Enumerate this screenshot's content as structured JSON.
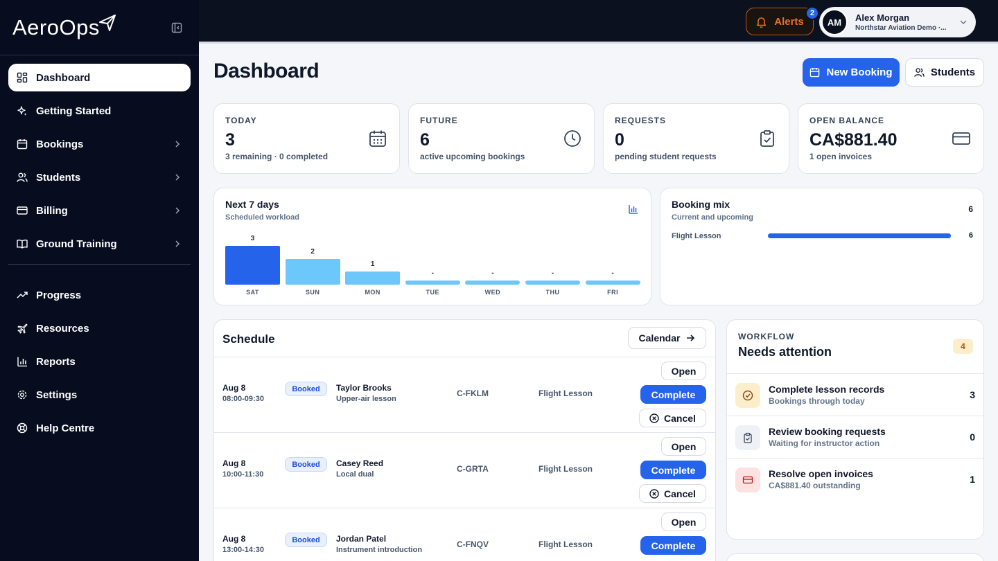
{
  "brand": {
    "name": "AeroOps"
  },
  "sidebar": {
    "items": [
      {
        "label": "Dashboard"
      },
      {
        "label": "Getting Started"
      },
      {
        "label": "Bookings"
      },
      {
        "label": "Students"
      },
      {
        "label": "Billing"
      },
      {
        "label": "Ground Training"
      },
      {
        "label": "Progress"
      },
      {
        "label": "Resources"
      },
      {
        "label": "Reports"
      },
      {
        "label": "Settings"
      },
      {
        "label": "Help Centre"
      }
    ]
  },
  "topbar": {
    "alerts_label": "Alerts",
    "alerts_count": "2",
    "user": {
      "initials": "AM",
      "name": "Alex Morgan",
      "org": "Northstar Aviation Demo ·..."
    }
  },
  "page": {
    "title": "Dashboard",
    "new_booking_label": "New Booking",
    "students_label": "Students"
  },
  "stats": [
    {
      "label": "TODAY",
      "value": "3",
      "sub": "3 remaining · 0 completed"
    },
    {
      "label": "FUTURE",
      "value": "6",
      "sub": "active upcoming bookings"
    },
    {
      "label": "REQUESTS",
      "value": "0",
      "sub": "pending student requests"
    },
    {
      "label": "OPEN BALANCE",
      "value": "CA$881.40",
      "sub": "1 open invoices"
    }
  ],
  "workload": {
    "title": "Next 7 days",
    "subtitle": "Scheduled workload"
  },
  "chart_data": {
    "type": "bar",
    "categories": [
      "SAT",
      "SUN",
      "MON",
      "TUE",
      "WED",
      "THU",
      "FRI"
    ],
    "values": [
      3,
      2,
      1,
      0,
      0,
      0,
      0
    ],
    "value_labels": [
      "3",
      "2",
      "1",
      "-",
      "-",
      "-",
      "-"
    ],
    "colors": [
      "#2563eb",
      "#6cc7fb",
      "#6cc7fb",
      "#6cc7fb",
      "#6cc7fb",
      "#6cc7fb",
      "#6cc7fb"
    ]
  },
  "booking_mix": {
    "title": "Booking mix",
    "subtitle": "Current and upcoming",
    "total": "6",
    "items": [
      {
        "label": "Flight Lesson",
        "value": "6",
        "fraction": 1.0
      }
    ]
  },
  "schedule": {
    "title": "Schedule",
    "calendar_label": "Calendar",
    "open_label": "Open",
    "complete_label": "Complete",
    "cancel_label": "Cancel",
    "rows": [
      {
        "date": "Aug 8",
        "time": "08:00-09:30",
        "status": "Booked",
        "student": "Taylor Brooks",
        "note": "Upper-air lesson",
        "aircraft": "C-FKLM",
        "type": "Flight Lesson"
      },
      {
        "date": "Aug 8",
        "time": "10:00-11:30",
        "status": "Booked",
        "student": "Casey Reed",
        "note": "Local dual",
        "aircraft": "C-GRTA",
        "type": "Flight Lesson"
      },
      {
        "date": "Aug 8",
        "time": "13:00-14:30",
        "status": "Booked",
        "student": "Jordan Patel",
        "note": "Instrument introduction",
        "aircraft": "C-FNQV",
        "type": "Flight Lesson"
      }
    ]
  },
  "workflow": {
    "eyebrow": "WORKFLOW",
    "title": "Needs attention",
    "count": "4",
    "items": [
      {
        "title": "Complete lesson records",
        "sub": "Bookings through today",
        "count": "3",
        "icon": "check-circle-icon",
        "color": "#fdeecb"
      },
      {
        "title": "Review booking requests",
        "sub": "Waiting for instructor action",
        "count": "0",
        "icon": "clipboard-icon",
        "color": "#eef1f6"
      },
      {
        "title": "Resolve open invoices",
        "sub": "CA$881.40 outstanding",
        "count": "1",
        "icon": "credit-card-icon",
        "color": "#fde2e2"
      }
    ]
  }
}
